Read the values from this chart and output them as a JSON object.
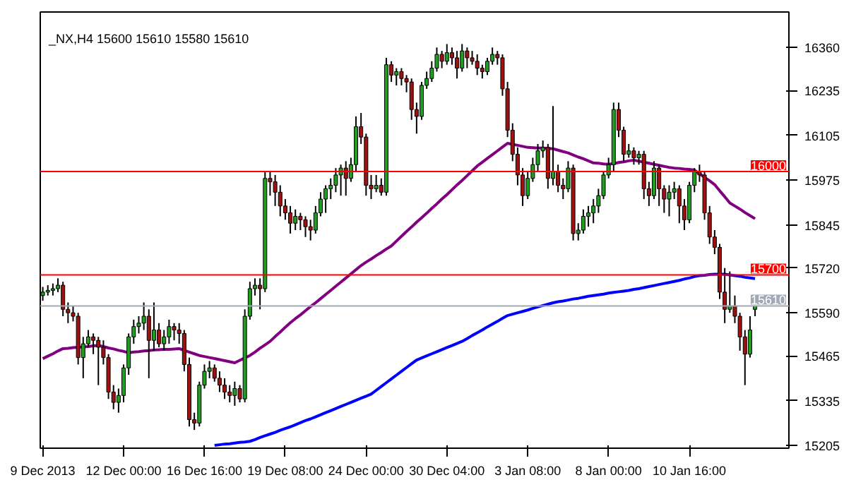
{
  "chart_data": {
    "type": "candlestick",
    "title": "_NX,H4  15600 15610 15580 15610",
    "categories": [
      "9 Dec 2013",
      null,
      null,
      null,
      null,
      null,
      null,
      null,
      null,
      null,
      null,
      null,
      null,
      null,
      null,
      null,
      "12 Dec 00:00",
      null,
      null,
      null,
      null,
      null,
      null,
      null,
      null,
      null,
      null,
      null,
      null,
      null,
      null,
      null,
      "16 Dec 16:00",
      null,
      null,
      null,
      null,
      null,
      null,
      null,
      null,
      null,
      null,
      null,
      null,
      null,
      null,
      null,
      "19 Dec 08:00",
      null,
      null,
      null,
      null,
      null,
      null,
      null,
      null,
      null,
      null,
      null,
      null,
      null,
      null,
      null,
      "24 Dec 00:00",
      null,
      null,
      null,
      null,
      null,
      null,
      null,
      null,
      null,
      null,
      null,
      null,
      null,
      null,
      null,
      "30 Dec 04:00",
      null,
      null,
      null,
      null,
      null,
      null,
      null,
      null,
      null,
      null,
      null,
      null,
      null,
      null,
      null,
      "3 Jan 08:00",
      null,
      null,
      null,
      null,
      null,
      null,
      null,
      null,
      null,
      null,
      null,
      null,
      null,
      null,
      null,
      "8 Jan 00:00",
      null,
      null,
      null,
      null,
      null,
      null,
      null,
      null,
      null,
      null,
      null,
      null,
      null,
      null,
      null,
      "10 Jan 16:00",
      null,
      null,
      null,
      null,
      null,
      null,
      null,
      null,
      null,
      null,
      null,
      null,
      null
    ],
    "ohlc": [
      [
        15640,
        15665,
        15625,
        15650
      ],
      [
        15650,
        15670,
        15640,
        15655
      ],
      [
        15655,
        15675,
        15640,
        15660
      ],
      [
        15660,
        15690,
        15650,
        15670
      ],
      [
        15670,
        15680,
        15580,
        15600
      ],
      [
        15600,
        15620,
        15560,
        15590
      ],
      [
        15590,
        15610,
        15565,
        15580
      ],
      [
        15580,
        15590,
        15440,
        15460
      ],
      [
        15460,
        15520,
        15400,
        15500
      ],
      [
        15500,
        15540,
        15490,
        15520
      ],
      [
        15520,
        15530,
        15470,
        15510
      ],
      [
        15510,
        15520,
        15380,
        15490
      ],
      [
        15490,
        15510,
        15440,
        15460
      ],
      [
        15460,
        15470,
        15340,
        15360
      ],
      [
        15360,
        15380,
        15310,
        15330
      ],
      [
        15330,
        15370,
        15300,
        15350
      ],
      [
        15350,
        15440,
        15330,
        15430
      ],
      [
        15430,
        15530,
        15410,
        15520
      ],
      [
        15520,
        15570,
        15500,
        15550
      ],
      [
        15550,
        15580,
        15530,
        15560
      ],
      [
        15560,
        15620,
        15540,
        15580
      ],
      [
        15580,
        15600,
        15400,
        15510
      ],
      [
        15510,
        15620,
        15480,
        15540
      ],
      [
        15540,
        15560,
        15490,
        15500
      ],
      [
        15500,
        15540,
        15480,
        15520
      ],
      [
        15520,
        15570,
        15500,
        15550
      ],
      [
        15550,
        15560,
        15510,
        15540
      ],
      [
        15540,
        15560,
        15500,
        15530
      ],
      [
        15530,
        15540,
        15420,
        15440
      ],
      [
        15440,
        15460,
        15260,
        15280
      ],
      [
        15280,
        15300,
        15250,
        15270
      ],
      [
        15270,
        15390,
        15260,
        15380
      ],
      [
        15380,
        15440,
        15370,
        15420
      ],
      [
        15420,
        15450,
        15400,
        15430
      ],
      [
        15430,
        15440,
        15390,
        15400
      ],
      [
        15400,
        15420,
        15360,
        15380
      ],
      [
        15380,
        15400,
        15340,
        15360
      ],
      [
        15360,
        15380,
        15330,
        15350
      ],
      [
        15350,
        15390,
        15320,
        15370
      ],
      [
        15370,
        15380,
        15330,
        15340
      ],
      [
        15340,
        15600,
        15330,
        15580
      ],
      [
        15580,
        15680,
        15570,
        15660
      ],
      [
        15660,
        15690,
        15640,
        15670
      ],
      [
        15670,
        15690,
        15600,
        15660
      ],
      [
        15660,
        16000,
        15650,
        15980
      ],
      [
        15980,
        16000,
        15930,
        15970
      ],
      [
        15970,
        15990,
        15900,
        15940
      ],
      [
        15940,
        15960,
        15870,
        15900
      ],
      [
        15900,
        15920,
        15860,
        15880
      ],
      [
        15880,
        15900,
        15820,
        15850
      ],
      [
        15850,
        15890,
        15830,
        15870
      ],
      [
        15870,
        15880,
        15830,
        15860
      ],
      [
        15860,
        15870,
        15810,
        15840
      ],
      [
        15840,
        15860,
        15800,
        15830
      ],
      [
        15830,
        15900,
        15820,
        15880
      ],
      [
        15880,
        15940,
        15870,
        15920
      ],
      [
        15920,
        15960,
        15880,
        15950
      ],
      [
        15950,
        15980,
        15920,
        15960
      ],
      [
        15960,
        16010,
        15940,
        15990
      ],
      [
        15990,
        16020,
        15930,
        16010
      ],
      [
        16010,
        16030,
        15930,
        15980
      ],
      [
        15980,
        16040,
        15970,
        16020
      ],
      [
        16020,
        16160,
        16000,
        16130
      ],
      [
        16130,
        16170,
        16080,
        16100
      ],
      [
        16100,
        16110,
        15930,
        15960
      ],
      [
        15960,
        15990,
        15920,
        15950
      ],
      [
        15950,
        15990,
        15940,
        15960
      ],
      [
        15960,
        15980,
        15930,
        15940
      ],
      [
        15940,
        16330,
        15930,
        16310
      ],
      [
        16310,
        16320,
        16260,
        16280
      ],
      [
        16280,
        16300,
        16250,
        16290
      ],
      [
        16290,
        16300,
        16250,
        16270
      ],
      [
        16270,
        16280,
        16230,
        16260
      ],
      [
        16260,
        16270,
        16150,
        16180
      ],
      [
        16180,
        16200,
        16110,
        16160
      ],
      [
        16160,
        16260,
        16150,
        16250
      ],
      [
        16250,
        16290,
        16240,
        16270
      ],
      [
        16270,
        16320,
        16260,
        16300
      ],
      [
        16300,
        16360,
        16290,
        16340
      ],
      [
        16340,
        16350,
        16300,
        16320
      ],
      [
        16320,
        16370,
        16310,
        16345
      ],
      [
        16345,
        16360,
        16310,
        16330
      ],
      [
        16330,
        16350,
        16270,
        16300
      ],
      [
        16300,
        16370,
        16290,
        16350
      ],
      [
        16350,
        16360,
        16300,
        16330
      ],
      [
        16330,
        16350,
        16310,
        16320
      ],
      [
        16320,
        16340,
        16280,
        16300
      ],
      [
        16300,
        16310,
        16270,
        16290
      ],
      [
        16290,
        16330,
        16280,
        16320
      ],
      [
        16320,
        16360,
        16310,
        16340
      ],
      [
        16340,
        16350,
        16310,
        16330
      ],
      [
        16330,
        16340,
        16220,
        16240
      ],
      [
        16240,
        16260,
        16100,
        16120
      ],
      [
        16120,
        16140,
        16030,
        16050
      ],
      [
        16050,
        16070,
        15960,
        15990
      ],
      [
        15990,
        16010,
        15900,
        15930
      ],
      [
        15930,
        16000,
        15920,
        15980
      ],
      [
        15980,
        16040,
        15970,
        16020
      ],
      [
        16020,
        16080,
        16000,
        16060
      ],
      [
        16060,
        16090,
        16040,
        16070
      ],
      [
        16070,
        16080,
        15950,
        15980
      ],
      [
        15980,
        16190,
        15960,
        16000
      ],
      [
        16000,
        16020,
        15940,
        15960
      ],
      [
        15960,
        15980,
        15920,
        15950
      ],
      [
        15950,
        16030,
        15940,
        16010
      ],
      [
        16010,
        16020,
        15800,
        15820
      ],
      [
        15820,
        15850,
        15800,
        15830
      ],
      [
        15830,
        15890,
        15820,
        15870
      ],
      [
        15870,
        15900,
        15840,
        15880
      ],
      [
        15880,
        15920,
        15850,
        15900
      ],
      [
        15900,
        15950,
        15880,
        15930
      ],
      [
        15930,
        16000,
        15920,
        15990
      ],
      [
        15990,
        16040,
        15980,
        16020
      ],
      [
        16020,
        16200,
        16000,
        16180
      ],
      [
        16180,
        16200,
        16100,
        16120
      ],
      [
        16120,
        16130,
        16030,
        16050
      ],
      [
        16050,
        16080,
        16040,
        16060
      ],
      [
        16060,
        16070,
        16020,
        16040
      ],
      [
        16040,
        16060,
        16020,
        16050
      ],
      [
        16050,
        16060,
        15920,
        15950
      ],
      [
        15950,
        15970,
        15900,
        15930
      ],
      [
        15930,
        16030,
        15920,
        16010
      ],
      [
        16010,
        16020,
        15900,
        15950
      ],
      [
        15950,
        15960,
        15880,
        15920
      ],
      [
        15920,
        15960,
        15870,
        15940
      ],
      [
        15940,
        15970,
        15920,
        15950
      ],
      [
        15950,
        15960,
        15850,
        15900
      ],
      [
        15900,
        15920,
        15830,
        15860
      ],
      [
        15860,
        15970,
        15850,
        15960
      ],
      [
        15960,
        16010,
        15940,
        16000
      ],
      [
        16000,
        16020,
        15970,
        15990
      ],
      [
        15990,
        16000,
        15860,
        15880
      ],
      [
        15880,
        15900,
        15790,
        15810
      ],
      [
        15810,
        15830,
        15760,
        15780
      ],
      [
        15780,
        15790,
        15630,
        15650
      ],
      [
        15650,
        15720,
        15560,
        15600
      ],
      [
        15600,
        15710,
        15590,
        15610
      ],
      [
        15610,
        15640,
        15560,
        15580
      ],
      [
        15580,
        15590,
        15480,
        15520
      ],
      [
        15520,
        15540,
        15380,
        15470
      ],
      [
        15470,
        15580,
        15460,
        15540
      ],
      [
        15600,
        15610,
        15580,
        15610
      ]
    ],
    "colors": [
      "#1f9e1f",
      "#1f9e1f",
      "#1f9e1f",
      "#1f9e1f",
      "#a01010",
      "#a01010",
      "#a01010",
      "#a01010",
      "#1f9e1f",
      "#1f9e1f",
      "#a01010",
      "#a01010",
      "#a01010",
      "#a01010",
      "#a01010",
      "#1f9e1f",
      "#1f9e1f",
      "#1f9e1f",
      "#1f9e1f",
      "#1f9e1f",
      "#1f9e1f",
      "#a01010",
      "#1f9e1f",
      "#a01010",
      "#1f9e1f",
      "#1f9e1f",
      "#a01010",
      "#a01010",
      "#a01010",
      "#a01010",
      "#a01010",
      "#1f9e1f",
      "#1f9e1f",
      "#1f9e1f",
      "#a01010",
      "#a01010",
      "#a01010",
      "#a01010",
      "#1f9e1f",
      "#a01010",
      "#1f9e1f",
      "#1f9e1f",
      "#1f9e1f",
      "#a01010",
      "#1f9e1f",
      "#a01010",
      "#a01010",
      "#a01010",
      "#a01010",
      "#a01010",
      "#1f9e1f",
      "#a01010",
      "#a01010",
      "#a01010",
      "#1f9e1f",
      "#1f9e1f",
      "#1f9e1f",
      "#1f9e1f",
      "#1f9e1f",
      "#1f9e1f",
      "#a01010",
      "#1f9e1f",
      "#1f9e1f",
      "#a01010",
      "#a01010",
      "#a01010",
      "#1f9e1f",
      "#a01010",
      "#1f9e1f",
      "#a01010",
      "#1f9e1f",
      "#a01010",
      "#a01010",
      "#a01010",
      "#a01010",
      "#1f9e1f",
      "#1f9e1f",
      "#1f9e1f",
      "#1f9e1f",
      "#a01010",
      "#1f9e1f",
      "#a01010",
      "#a01010",
      "#1f9e1f",
      "#a01010",
      "#a01010",
      "#a01010",
      "#a01010",
      "#1f9e1f",
      "#1f9e1f",
      "#a01010",
      "#a01010",
      "#a01010",
      "#a01010",
      "#a01010",
      "#a01010",
      "#1f9e1f",
      "#1f9e1f",
      "#1f9e1f",
      "#1f9e1f",
      "#a01010",
      "#1f9e1f",
      "#a01010",
      "#a01010",
      "#1f9e1f",
      "#a01010",
      "#1f9e1f",
      "#1f9e1f",
      "#1f9e1f",
      "#1f9e1f",
      "#1f9e1f",
      "#1f9e1f",
      "#1f9e1f",
      "#1f9e1f",
      "#a01010",
      "#a01010",
      "#1f9e1f",
      "#a01010",
      "#1f9e1f",
      "#a01010",
      "#a01010",
      "#1f9e1f",
      "#a01010",
      "#a01010",
      "#1f9e1f",
      "#1f9e1f",
      "#a01010",
      "#a01010",
      "#1f9e1f",
      "#1f9e1f",
      "#a01010",
      "#a01010",
      "#a01010",
      "#a01010",
      "#a01010",
      "#a01010",
      "#1f9e1f",
      "#a01010",
      "#a01010",
      "#a01010",
      "#1f9e1f",
      "#1f9e1f"
    ],
    "series": [
      {
        "type": "line",
        "color": "#800080",
        "values": [
          15457,
          15464,
          15471,
          15479,
          15486,
          15487,
          15489,
          15490,
          15491,
          15492,
          15494,
          15495,
          15492,
          15488,
          15485,
          15481,
          15478,
          15474,
          15476,
          15477,
          15479,
          15480,
          15482,
          15483,
          15484,
          15484,
          15485,
          15486,
          15481,
          15476,
          15471,
          15466,
          15463,
          15460,
          15457,
          15454,
          15451,
          15448,
          15445,
          15452,
          15459,
          15466,
          15476,
          15487,
          15497,
          15507,
          15521,
          15534,
          15548,
          15561,
          15573,
          15584,
          15596,
          15608,
          15619,
          15631,
          15643,
          15655,
          15667,
          15679,
          15691,
          15703,
          15715,
          15727,
          15737,
          15746,
          15756,
          15765,
          15775,
          15784,
          15798,
          15812,
          15826,
          15839,
          15853,
          15866,
          15879,
          15893,
          15906,
          15920,
          15933,
          15947,
          15961,
          15974,
          15988,
          16002,
          16016,
          16027,
          16038,
          16049,
          16060,
          16071,
          16082,
          16079,
          16076,
          16073,
          16070,
          16069,
          16068,
          16068,
          16067,
          16066,
          16062,
          16058,
          16054,
          16048,
          16042,
          16037,
          16031,
          16025,
          16024,
          16022,
          16021,
          16023,
          16026,
          16028,
          16031,
          16033,
          16030,
          16027,
          16024,
          16021,
          16018,
          16015,
          16012,
          16010,
          16009,
          16007,
          16006,
          16004,
          15994,
          15983,
          15973,
          15962,
          15944,
          15927,
          15909,
          15900,
          15891,
          15881,
          15872,
          15863
        ]
      },
      {
        "type": "line",
        "color": "#0000ff",
        "values": [
          null,
          null,
          null,
          null,
          null,
          null,
          null,
          null,
          null,
          null,
          null,
          null,
          null,
          null,
          null,
          null,
          null,
          null,
          null,
          null,
          null,
          null,
          null,
          null,
          null,
          null,
          null,
          null,
          null,
          null,
          null,
          null,
          null,
          null,
          15205,
          15207,
          15209,
          15210,
          15212,
          15214,
          15215,
          15217,
          15222,
          15228,
          15233,
          15238,
          15243,
          15249,
          15254,
          15259,
          15265,
          15271,
          15277,
          15282,
          15288,
          15294,
          15300,
          15306,
          15312,
          15318,
          15324,
          15330,
          15336,
          15342,
          15348,
          15354,
          15365,
          15376,
          15387,
          15398,
          15409,
          15420,
          15431,
          15442,
          15453,
          15459,
          15465,
          15471,
          15477,
          15483,
          15489,
          15495,
          15501,
          15507,
          15515,
          15524,
          15532,
          15540,
          15549,
          15557,
          15565,
          15574,
          15582,
          15586,
          15590,
          15594,
          15598,
          15603,
          15607,
          15611,
          15615,
          15619,
          15622,
          15624,
          15627,
          15630,
          15632,
          15635,
          15638,
          15640,
          15642,
          15644,
          15647,
          15649,
          15651,
          15653,
          15655,
          15658,
          15660,
          15663,
          15666,
          15669,
          15672,
          15675,
          15678,
          15681,
          15684,
          15688,
          15691,
          15695,
          15698,
          15699,
          15701,
          15702,
          15702,
          15702,
          15700,
          15698,
          15696,
          15693,
          15691,
          15689
        ]
      }
    ],
    "ref_lines": [
      {
        "axis": "y",
        "value": 16000,
        "label": "16000",
        "color": "#ff0000"
      },
      {
        "axis": "y",
        "value": 15700,
        "label": "15700",
        "color": "#ff0000"
      },
      {
        "axis": "y",
        "value": 15610,
        "label": "15610",
        "color": "#a0aab4"
      }
    ],
    "ylim": [
      15197,
      16463
    ],
    "yticks": [
      15205,
      15335,
      15465,
      15590,
      15720,
      15845,
      15975,
      16105,
      16235,
      16360
    ]
  }
}
